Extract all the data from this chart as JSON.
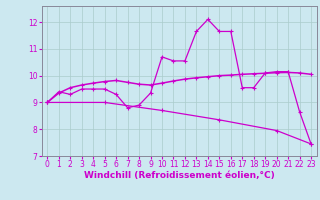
{
  "background_color": "#cce8f0",
  "grid_color": "#aacccc",
  "line_color": "#cc00cc",
  "xlabel": "Windchill (Refroidissement éolien,°C)",
  "xlabel_fontsize": 6.5,
  "tick_fontsize": 5.5,
  "xlim": [
    -0.5,
    23.5
  ],
  "ylim": [
    7,
    12.6
  ],
  "yticks": [
    7,
    8,
    9,
    10,
    11,
    12
  ],
  "xticks": [
    0,
    1,
    2,
    3,
    4,
    5,
    6,
    7,
    8,
    9,
    10,
    11,
    12,
    13,
    14,
    15,
    16,
    17,
    18,
    19,
    20,
    21,
    22,
    23
  ],
  "curve1_x": [
    0,
    1,
    2,
    3,
    4,
    5,
    6,
    7,
    8,
    9,
    10,
    11,
    12,
    13,
    14,
    15,
    16,
    17,
    18,
    19,
    20,
    21,
    22,
    23
  ],
  "curve1_y": [
    9.0,
    9.4,
    9.3,
    9.5,
    9.5,
    9.5,
    9.3,
    8.8,
    8.9,
    9.35,
    10.7,
    10.55,
    10.55,
    11.65,
    12.1,
    11.65,
    11.65,
    9.55,
    9.55,
    10.1,
    10.15,
    10.15,
    8.65,
    7.45
  ],
  "curve2_x": [
    0,
    1,
    2,
    3,
    4,
    5,
    6,
    7,
    8,
    9,
    10,
    11,
    12,
    13,
    14,
    15,
    16,
    17,
    18,
    19,
    20,
    21,
    22,
    23
  ],
  "curve2_y": [
    9.0,
    9.35,
    9.55,
    9.65,
    9.72,
    9.78,
    9.82,
    9.75,
    9.68,
    9.65,
    9.72,
    9.8,
    9.87,
    9.92,
    9.96,
    10.0,
    10.02,
    10.05,
    10.07,
    10.09,
    10.11,
    10.12,
    10.1,
    10.05
  ],
  "curve3_x": [
    0,
    5,
    10,
    15,
    20,
    23
  ],
  "curve3_y": [
    9.0,
    9.0,
    8.7,
    8.35,
    7.95,
    7.45
  ]
}
